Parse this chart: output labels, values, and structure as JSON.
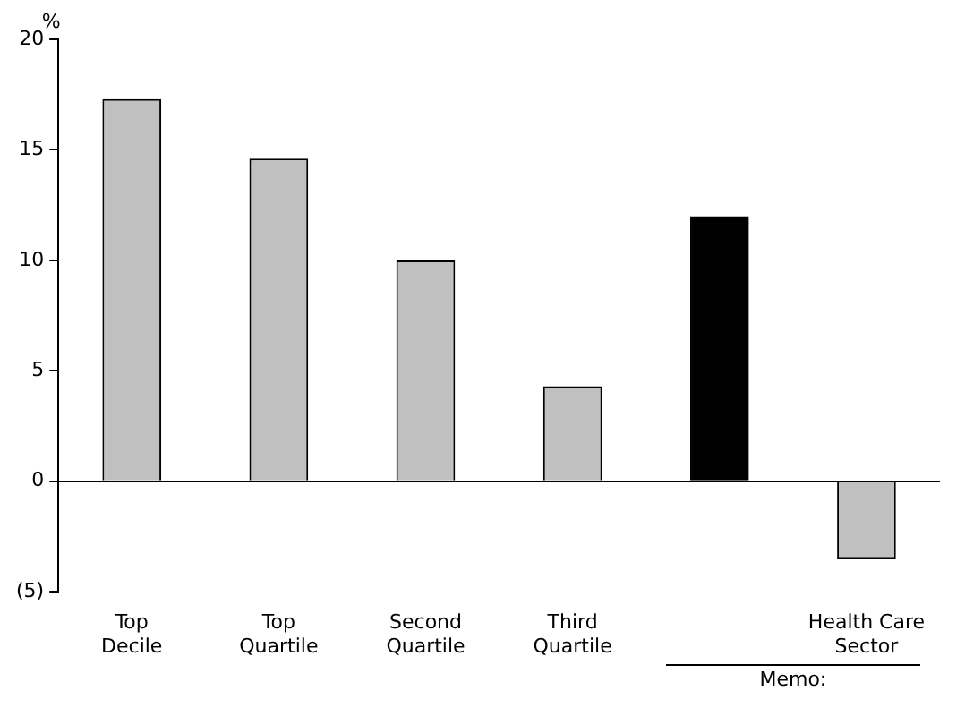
{
  "chart_data": {
    "type": "bar",
    "ylabel": "%",
    "categories": [
      "Top Decile",
      "Top Quartile",
      "Second Quartile",
      "Third Quartile",
      null,
      "Health Care Sector"
    ],
    "values": [
      17.3,
      14.6,
      10.0,
      4.3,
      12.0,
      -3.5
    ],
    "colors": [
      "#c0c0c0",
      "#c0c0c0",
      "#c0c0c0",
      "#c0c0c0",
      "#000000",
      "#c0c0c0"
    ],
    "ylim": [
      -5,
      20
    ],
    "yticks": [
      {
        "value": -5,
        "label": "(5)"
      },
      0,
      5,
      10,
      15,
      20
    ],
    "annotations": [
      "Memo:"
    ]
  }
}
